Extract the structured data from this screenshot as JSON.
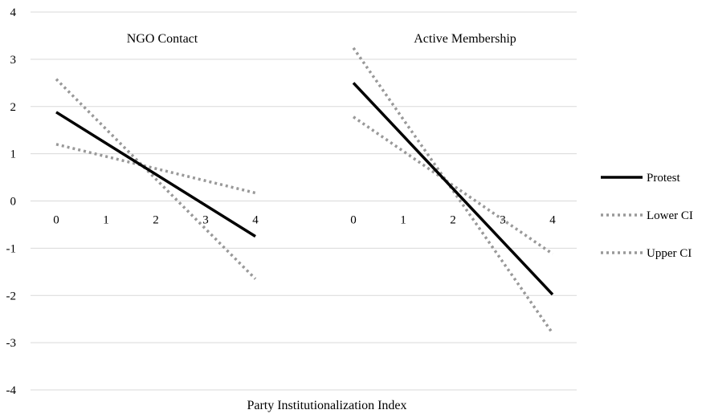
{
  "chart_data": {
    "type": "line",
    "xlabel": "Party Institutionalization Index",
    "ylim": [
      -4,
      4
    ],
    "y_ticks": [
      4,
      3,
      2,
      1,
      0,
      -1,
      -2,
      -3,
      -4
    ],
    "y_tick_labels": [
      "4",
      "3",
      "2",
      "1",
      "0",
      "-1",
      "-2",
      "-3",
      "-4"
    ],
    "grid": "horizontal",
    "legend_position": "right",
    "legend": [
      {
        "name": "Protest",
        "style": "solid",
        "color": "#000000"
      },
      {
        "name": "Lower CI",
        "style": "dotted",
        "color": "#999999"
      },
      {
        "name": "Upper CI",
        "style": "dotted",
        "color": "#999999"
      }
    ],
    "panels": [
      {
        "title": "NGO Contact",
        "x": [
          0,
          4
        ],
        "x_tick_labels": [
          "0",
          "1",
          "2",
          "3",
          "4"
        ],
        "series": [
          {
            "name": "Protest",
            "values": [
              1.88,
              -0.75
            ]
          },
          {
            "name": "Lower CI",
            "values": [
              1.2,
              0.17
            ]
          },
          {
            "name": "Upper CI",
            "values": [
              2.58,
              -1.65
            ]
          }
        ]
      },
      {
        "title": "Active Membership",
        "x": [
          0,
          4
        ],
        "x_tick_labels": [
          "0",
          "1",
          "2",
          "3",
          "4"
        ],
        "series": [
          {
            "name": "Protest",
            "values": [
              2.5,
              -1.98
            ]
          },
          {
            "name": "Lower CI",
            "values": [
              1.78,
              -1.12
            ]
          },
          {
            "name": "Upper CI",
            "values": [
              3.24,
              -2.8
            ]
          }
        ]
      }
    ]
  }
}
